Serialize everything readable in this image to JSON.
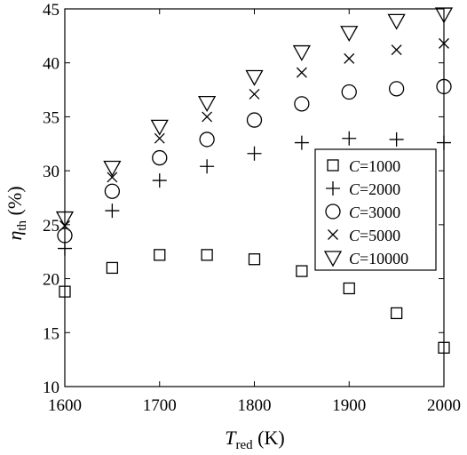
{
  "chart_data": {
    "type": "scatter",
    "xlabel": {
      "main": "T",
      "sub": "red",
      "unit": " (K)"
    },
    "ylabel": {
      "main": "η",
      "sub": "th",
      "unit": " (%)"
    },
    "xlim": [
      1600,
      2000
    ],
    "ylim": [
      10,
      45
    ],
    "xticks": [
      1600,
      1700,
      1800,
      1900,
      2000
    ],
    "yticks": [
      10,
      15,
      20,
      25,
      30,
      35,
      40,
      45
    ],
    "grid": false,
    "legend_position": "lower-right",
    "x": [
      1600,
      1650,
      1700,
      1750,
      1800,
      1850,
      1900,
      1950,
      2000
    ],
    "series": [
      {
        "name": "C=1000",
        "var": "C",
        "value": "=1000",
        "marker": "square",
        "values": [
          18.8,
          21.0,
          22.2,
          22.2,
          21.8,
          20.7,
          19.1,
          16.8,
          13.6
        ]
      },
      {
        "name": "C=2000",
        "var": "C",
        "value": "=2000",
        "marker": "plus",
        "values": [
          22.8,
          26.3,
          29.1,
          30.4,
          31.6,
          32.6,
          33.0,
          32.9,
          32.6
        ]
      },
      {
        "name": "C=3000",
        "var": "C",
        "value": "=3000",
        "marker": "circle",
        "values": [
          24.0,
          28.1,
          31.2,
          32.9,
          34.7,
          36.2,
          37.3,
          37.6,
          37.8
        ]
      },
      {
        "name": "C=5000",
        "var": "C",
        "value": "=5000",
        "marker": "x",
        "values": [
          24.9,
          29.4,
          33.0,
          35.0,
          37.1,
          39.1,
          40.4,
          41.2,
          41.8
        ]
      },
      {
        "name": "C=10000",
        "var": "C",
        "value": "=10000",
        "marker": "triangle-down",
        "values": [
          25.6,
          30.3,
          34.1,
          36.3,
          38.7,
          41.0,
          42.8,
          43.9,
          44.5
        ]
      }
    ]
  }
}
